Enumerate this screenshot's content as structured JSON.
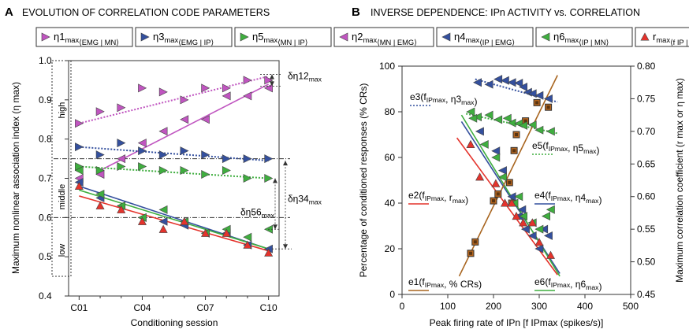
{
  "panels": {
    "a": {
      "letter": "A",
      "title": "EVOLUTION OF CORRELATION CODE PARAMETERS"
    },
    "b": {
      "letter": "B",
      "title": "INVERSE DEPENDENCE: IPn ACTIVITY vs. CORRELATION"
    }
  },
  "colors": {
    "magenta": "#c055c0",
    "navy": "#34509e",
    "green": "#3fae3f",
    "red": "#e4332c",
    "brown": "#a8651f",
    "orange_fill": "#b5651d"
  },
  "legend": [
    {
      "id": "eta1",
      "main": "η1",
      "sub": "max",
      "sub2": "⟨EMG | MN⟩",
      "color_key": "magenta",
      "marker": "tri-right"
    },
    {
      "id": "eta3",
      "main": "η3",
      "sub": "max",
      "sub2": "⟨EMG | IP⟩",
      "color_key": "navy",
      "marker": "tri-right"
    },
    {
      "id": "eta5",
      "main": "η5",
      "sub": "max",
      "sub2": "⟨MN | IP⟩",
      "color_key": "green",
      "marker": "tri-right"
    },
    {
      "id": "eta2",
      "main": "η2",
      "sub": "max",
      "sub2": "⟨MN | EMG⟩",
      "color_key": "magenta",
      "marker": "tri-left"
    },
    {
      "id": "eta4",
      "main": "η4",
      "sub": "max",
      "sub2": "⟨IP | EMG⟩",
      "color_key": "navy",
      "marker": "tri-left"
    },
    {
      "id": "eta6",
      "main": "η6",
      "sub": "max",
      "sub2": "⟨IP | MN⟩",
      "color_key": "green",
      "marker": "tri-left"
    },
    {
      "id": "rmax",
      "main": "r",
      "sub": "max",
      "sub2": "⟨f IP | θ⟩",
      "color_key": "red",
      "marker": "tri-up"
    }
  ],
  "chart_data": [
    {
      "id": "A",
      "type": "scatter",
      "title": "EVOLUTION OF CORRELATION CODE PARAMETERS",
      "xlabel": "Conditioning session",
      "ylabel": "Maximum nonlinear association index (η max)",
      "xlim": [
        0.5,
        10.5
      ],
      "ylim": [
        0.4,
        1.0
      ],
      "x_ticks": [
        1,
        4,
        7,
        10
      ],
      "x_tick_labels": [
        "C01",
        "C04",
        "C07",
        "C10"
      ],
      "y_ticks": [
        0.4,
        0.5,
        0.6,
        0.7,
        0.8,
        0.9,
        1.0
      ],
      "y_tick_labels": [
        "0.4",
        "0.5",
        "0.6",
        "0.7",
        "0.8",
        "0.9",
        "1.0"
      ],
      "band_labels": [
        "high",
        "middle",
        "low"
      ],
      "series": [
        {
          "name": "η1max",
          "color_key": "magenta",
          "marker": "tri-right",
          "x": [
            1,
            2,
            3,
            4,
            5,
            6,
            7,
            8,
            9,
            10
          ],
          "y": [
            0.84,
            0.87,
            0.88,
            0.93,
            0.92,
            0.9,
            0.93,
            0.93,
            0.95,
            0.95
          ]
        },
        {
          "name": "η2max",
          "color_key": "magenta",
          "marker": "tri-left",
          "x": [
            1,
            2,
            3,
            4,
            5,
            6,
            7,
            8,
            9,
            10
          ],
          "y": [
            0.7,
            0.71,
            0.75,
            0.79,
            0.82,
            0.85,
            0.85,
            0.91,
            0.91,
            0.93
          ]
        },
        {
          "name": "η3max",
          "color_key": "navy",
          "marker": "tri-right",
          "x": [
            1,
            2,
            3,
            4,
            5,
            6,
            7,
            8,
            9,
            10
          ],
          "y": [
            0.78,
            0.76,
            0.79,
            0.77,
            0.76,
            0.77,
            0.76,
            0.75,
            0.75,
            0.75
          ]
        },
        {
          "name": "η4max",
          "color_key": "navy",
          "marker": "tri-left",
          "x": [
            1,
            2,
            3,
            4,
            5,
            6,
            7,
            8,
            9,
            10
          ],
          "y": [
            0.69,
            0.65,
            0.63,
            0.6,
            0.59,
            0.58,
            0.56,
            0.56,
            0.53,
            0.52
          ]
        },
        {
          "name": "η5max",
          "color_key": "green",
          "marker": "tri-right",
          "x": [
            1,
            2,
            3,
            4,
            5,
            6,
            7,
            8,
            9,
            10
          ],
          "y": [
            0.73,
            0.72,
            0.73,
            0.73,
            0.72,
            0.72,
            0.71,
            0.72,
            0.7,
            0.7
          ]
        },
        {
          "name": "η6max",
          "color_key": "green",
          "marker": "tri-left",
          "x": [
            1,
            2,
            3,
            4,
            5,
            6,
            7,
            8,
            9,
            10
          ],
          "y": [
            0.72,
            0.66,
            0.63,
            0.6,
            0.62,
            0.59,
            0.56,
            0.57,
            0.55,
            0.57
          ]
        },
        {
          "name": "rmax",
          "color_key": "red",
          "marker": "tri-up",
          "x": [
            1,
            2,
            3,
            4,
            5,
            6,
            7,
            8,
            9,
            10
          ],
          "y": [
            0.68,
            0.63,
            0.62,
            0.59,
            0.57,
            0.59,
            0.56,
            0.56,
            0.53,
            0.51
          ]
        }
      ],
      "fits": [
        {
          "color_key": "magenta",
          "dotted": true,
          "x": [
            1.0,
            10.0
          ],
          "y": [
            0.84,
            0.96
          ]
        },
        {
          "color_key": "magenta",
          "dotted": false,
          "x": [
            2.0,
            10.0
          ],
          "y": [
            0.72,
            0.94
          ]
        },
        {
          "color_key": "navy",
          "dotted": true,
          "x": [
            1.0,
            10.0
          ],
          "y": [
            0.78,
            0.745
          ]
        },
        {
          "color_key": "green",
          "dotted": true,
          "x": [
            1.0,
            10.0
          ],
          "y": [
            0.73,
            0.7
          ]
        },
        {
          "color_key": "navy",
          "dotted": false,
          "x": [
            1.0,
            10.0
          ],
          "y": [
            0.68,
            0.52
          ]
        },
        {
          "color_key": "green",
          "dotted": false,
          "x": [
            1.0,
            10.0
          ],
          "y": [
            0.67,
            0.52
          ]
        },
        {
          "color_key": "red",
          "dotted": false,
          "x": [
            1.0,
            10.0
          ],
          "y": [
            0.655,
            0.515
          ]
        }
      ],
      "reference_lines": [
        0.75,
        0.6
      ],
      "annotations": [
        {
          "id": "d12",
          "text": "δη12",
          "sub": "max"
        },
        {
          "id": "d34",
          "text": "δη34",
          "sub": "max"
        },
        {
          "id": "d56",
          "text": "δη56",
          "sub": "max"
        }
      ]
    },
    {
      "id": "B",
      "type": "scatter",
      "title": "INVERSE DEPENDENCE: IPn ACTIVITY vs. CORRELATION",
      "xlabel": "Peak firing rate of IPn [f IPmax (spikes/s)]",
      "ylabel": "Percentage of conditioned responses (% CRs)",
      "y2label": "Maximum correlation coefficient (r max or η max)",
      "xlim": [
        0,
        500
      ],
      "ylim": [
        0,
        100
      ],
      "y2lim": [
        0.45,
        0.8
      ],
      "x_ticks": [
        0,
        100,
        200,
        300,
        400,
        500
      ],
      "x_tick_labels": [
        "0",
        "100",
        "200",
        "300",
        "400",
        "500"
      ],
      "y_ticks": [
        0,
        20,
        40,
        60,
        80,
        100
      ],
      "y_tick_labels": [
        "0",
        "20",
        "40",
        "60",
        "80",
        "100"
      ],
      "y2_ticks": [
        0.45,
        0.5,
        0.55,
        0.6,
        0.65,
        0.7,
        0.75,
        0.8
      ],
      "y2_tick_labels": [
        "0.45",
        "0.50",
        "0.55",
        "0.60",
        "0.65",
        "0.70",
        "0.75",
        "0.80"
      ],
      "series": [
        {
          "name": "% CRs",
          "axis": "left",
          "color_key": "brown",
          "marker": "square",
          "x": [
            150,
            160,
            200,
            210,
            235,
            240,
            245,
            250,
            270,
            295,
            320
          ],
          "y": [
            18,
            23,
            41,
            44,
            49,
            40,
            63,
            70,
            76,
            84,
            82
          ]
        },
        {
          "name": "η3max",
          "axis": "right",
          "color_key": "navy",
          "marker": "tri-left",
          "x": [
            165,
            190,
            210,
            225,
            240,
            255,
            265,
            275,
            285,
            300,
            320
          ],
          "y": [
            0.775,
            0.772,
            0.78,
            0.778,
            0.775,
            0.774,
            0.768,
            0.76,
            0.758,
            0.755,
            0.75
          ]
        },
        {
          "name": "η5max",
          "axis": "right",
          "color_key": "green",
          "marker": "tri-left",
          "x": [
            150,
            165,
            190,
            210,
            230,
            240,
            255,
            265,
            285,
            300,
            325
          ],
          "y": [
            0.73,
            0.722,
            0.725,
            0.718,
            0.72,
            0.713,
            0.712,
            0.709,
            0.71,
            0.702,
            0.7
          ]
        },
        {
          "name": "η4max",
          "axis": "right",
          "color_key": "navy",
          "marker": "tri-left",
          "x": [
            170,
            205,
            220,
            240,
            255,
            262,
            270,
            285,
            300,
            310,
            320
          ],
          "y": [
            0.7,
            0.67,
            0.64,
            0.6,
            0.57,
            0.58,
            0.55,
            0.54,
            0.52,
            0.55,
            0.54
          ]
        },
        {
          "name": "η6max",
          "axis": "right",
          "color_key": "green",
          "marker": "tri-left",
          "x": [
            155,
            180,
            205,
            220,
            245,
            255,
            265,
            285,
            300,
            315,
            325
          ],
          "y": [
            0.72,
            0.68,
            0.66,
            0.63,
            0.59,
            0.6,
            0.57,
            0.56,
            0.55,
            0.57,
            0.58
          ]
        },
        {
          "name": "rmax",
          "axis": "right",
          "color_key": "red",
          "marker": "tri-up",
          "x": [
            150,
            170,
            205,
            225,
            240,
            250,
            265,
            285,
            300,
            325
          ],
          "y": [
            0.68,
            0.63,
            0.62,
            0.59,
            0.59,
            0.57,
            0.56,
            0.56,
            0.53,
            0.51
          ]
        }
      ],
      "fits": [
        {
          "color_key": "navy",
          "dotted": true,
          "axis": "right",
          "x": [
            160,
            340
          ],
          "y": [
            0.78,
            0.745
          ]
        },
        {
          "color_key": "green",
          "dotted": true,
          "axis": "right",
          "x": [
            140,
            340
          ],
          "y": [
            0.727,
            0.697
          ]
        },
        {
          "color_key": "red",
          "dotted": false,
          "axis": "right",
          "x": [
            120,
            340
          ],
          "y": [
            0.69,
            0.48
          ]
        },
        {
          "color_key": "navy",
          "dotted": false,
          "axis": "right",
          "x": [
            130,
            345
          ],
          "y": [
            0.715,
            0.482
          ]
        },
        {
          "color_key": "green",
          "dotted": false,
          "axis": "right",
          "x": [
            130,
            345
          ],
          "y": [
            0.725,
            0.478
          ]
        },
        {
          "color_key": "brown",
          "dotted": false,
          "axis": "left",
          "x": [
            125,
            340
          ],
          "y": [
            8,
            96
          ]
        }
      ],
      "annotations": [
        {
          "id": "e3",
          "pre": "e3(f",
          "s1": "IPmax",
          "mid": ", η3",
          "s2": "max",
          "post": ")",
          "color_key": "navy",
          "dotted": true
        },
        {
          "id": "e5",
          "pre": "e5(f",
          "s1": "IPmax",
          "mid": ", η5",
          "s2": "max",
          "post": ")",
          "color_key": "green",
          "dotted": true
        },
        {
          "id": "e2",
          "pre": "e2(f",
          "s1": "IPmax",
          "mid": ", r",
          "s2": "max",
          "post": ")",
          "color_key": "red",
          "dotted": false
        },
        {
          "id": "e4",
          "pre": "e4(f",
          "s1": "IPmax",
          "mid": ", η4",
          "s2": "max",
          "post": ")",
          "color_key": "navy",
          "dotted": false
        },
        {
          "id": "e1",
          "pre": "e1(f",
          "s1": "IPmax",
          "mid": ", % CRs",
          "s2": "",
          "post": ")",
          "color_key": "brown",
          "dotted": false
        },
        {
          "id": "e6",
          "pre": "e6(f",
          "s1": "IPmax",
          "mid": ", η6",
          "s2": "max",
          "post": ")",
          "color_key": "green",
          "dotted": false
        }
      ]
    }
  ]
}
